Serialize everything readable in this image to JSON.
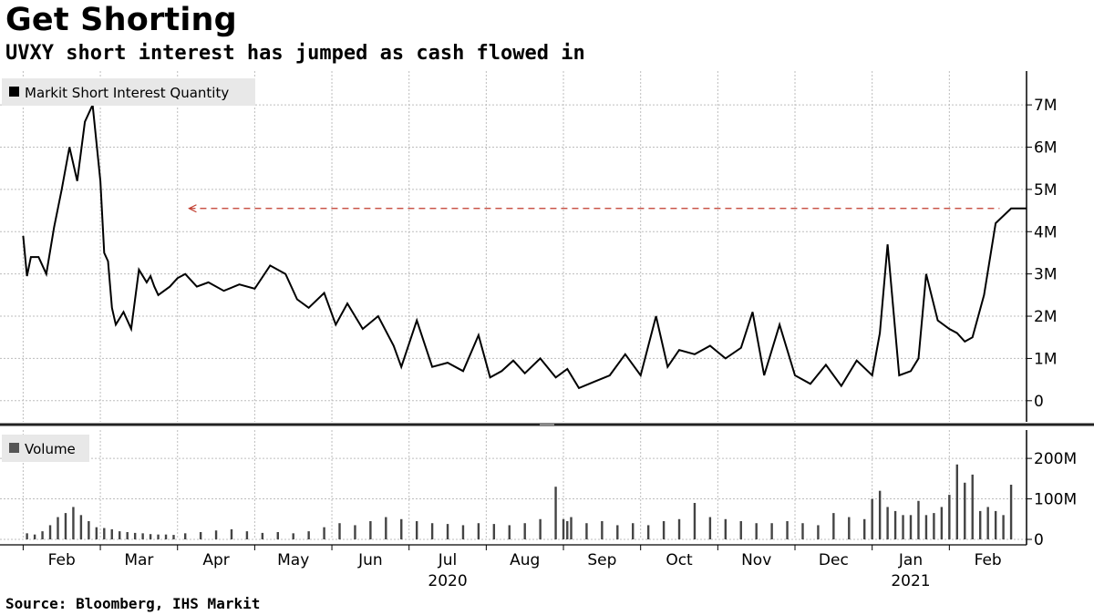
{
  "title": "Get Shorting",
  "subtitle": "UVXY short interest has jumped as cash flowed in",
  "source": "Source: Bloomberg, IHS Markit",
  "colors": {
    "line": "#000000",
    "reference": "#c0392b",
    "volume": "#444444",
    "grid": "#bdbdbd"
  },
  "chart_data": [
    {
      "type": "line",
      "title": "",
      "legend": {
        "position": "top-left",
        "label": "Markit Short Interest Quantity"
      },
      "ylabel": "",
      "ylim": [
        -0.5,
        7.8
      ],
      "yticks": [
        0,
        1,
        2,
        3,
        4,
        5,
        6,
        7
      ],
      "ytick_labels": [
        "0",
        "1M",
        "2M",
        "3M",
        "4M",
        "5M",
        "6M",
        "7M"
      ],
      "x_unit": "month index (Feb 2020 = 0)",
      "reference_line": {
        "value": 4.55,
        "style": "dashed",
        "direction": "arrow-left"
      },
      "series": [
        {
          "name": "Markit Short Interest Quantity",
          "x": [
            0.0,
            0.05,
            0.1,
            0.2,
            0.3,
            0.4,
            0.5,
            0.6,
            0.7,
            0.8,
            0.9,
            1.0,
            1.05,
            1.1,
            1.15,
            1.2,
            1.3,
            1.4,
            1.5,
            1.6,
            1.65,
            1.7,
            1.75,
            1.9,
            2.0,
            2.1,
            2.25,
            2.4,
            2.6,
            2.8,
            3.0,
            3.2,
            3.4,
            3.55,
            3.7,
            3.9,
            4.05,
            4.2,
            4.4,
            4.6,
            4.8,
            4.9,
            5.1,
            5.3,
            5.5,
            5.7,
            5.9,
            6.05,
            6.2,
            6.35,
            6.5,
            6.7,
            6.9,
            7.05,
            7.2,
            7.4,
            7.6,
            7.8,
            8.0,
            8.2,
            8.35,
            8.5,
            8.7,
            8.9,
            9.1,
            9.3,
            9.45,
            9.6,
            9.8,
            10.0,
            10.2,
            10.4,
            10.6,
            10.8,
            11.0,
            11.1,
            11.2,
            11.35,
            11.5,
            11.6,
            11.7,
            11.85,
            12.0,
            12.1,
            12.2,
            12.3,
            12.45,
            12.6,
            12.8,
            12.9,
            13.0
          ],
          "y": [
            3.9,
            2.95,
            3.4,
            3.4,
            3.0,
            4.1,
            5.0,
            6.0,
            5.2,
            6.6,
            7.0,
            5.2,
            3.5,
            3.3,
            2.2,
            1.8,
            2.1,
            1.7,
            3.1,
            2.8,
            2.95,
            2.7,
            2.5,
            2.7,
            2.9,
            3.0,
            2.7,
            2.8,
            2.6,
            2.75,
            2.65,
            3.2,
            3.0,
            2.4,
            2.2,
            2.55,
            1.8,
            2.3,
            1.7,
            2.0,
            1.3,
            0.8,
            1.9,
            0.8,
            0.9,
            0.7,
            1.55,
            0.55,
            0.7,
            0.95,
            0.65,
            1.0,
            0.55,
            0.75,
            0.3,
            0.45,
            0.6,
            1.1,
            0.6,
            2.0,
            0.8,
            1.2,
            1.1,
            1.3,
            1.0,
            1.25,
            2.1,
            0.6,
            1.8,
            0.6,
            0.4,
            0.85,
            0.35,
            0.95,
            0.6,
            1.6,
            3.7,
            0.6,
            0.7,
            1.0,
            3.0,
            1.9,
            1.7,
            1.6,
            1.4,
            1.5,
            2.5,
            4.2,
            4.55,
            4.55,
            4.55
          ]
        }
      ]
    },
    {
      "type": "bar",
      "title": "",
      "legend": {
        "position": "top-left",
        "label": "Volume"
      },
      "ylim": [
        0,
        270
      ],
      "yticks": [
        0,
        100,
        200
      ],
      "ytick_labels": [
        "0",
        "100M",
        "200M"
      ],
      "x_unit": "month index (Feb 2020 = 0)",
      "x_labels": [
        "Feb",
        "Mar",
        "Apr",
        "May",
        "Jun",
        "Jul",
        "Aug",
        "Sep",
        "Oct",
        "Nov",
        "Dec",
        "Jan",
        "Feb"
      ],
      "year_labels": [
        {
          "at": 5,
          "label": "2020"
        },
        {
          "at": 11,
          "label": "2021"
        }
      ],
      "series": [
        {
          "name": "Volume",
          "x": [
            0.05,
            0.15,
            0.25,
            0.35,
            0.45,
            0.55,
            0.65,
            0.75,
            0.85,
            0.95,
            1.05,
            1.15,
            1.25,
            1.35,
            1.45,
            1.55,
            1.65,
            1.75,
            1.85,
            1.95,
            2.1,
            2.3,
            2.5,
            2.7,
            2.9,
            3.1,
            3.3,
            3.5,
            3.7,
            3.9,
            4.1,
            4.3,
            4.5,
            4.7,
            4.9,
            5.1,
            5.3,
            5.5,
            5.7,
            5.9,
            6.1,
            6.3,
            6.5,
            6.7,
            6.9,
            7.0,
            7.05,
            7.1,
            7.3,
            7.5,
            7.7,
            7.9,
            8.1,
            8.3,
            8.5,
            8.7,
            8.9,
            9.1,
            9.3,
            9.5,
            9.7,
            9.9,
            10.1,
            10.3,
            10.5,
            10.7,
            10.9,
            11.0,
            11.1,
            11.2,
            11.3,
            11.4,
            11.5,
            11.6,
            11.7,
            11.8,
            11.9,
            12.0,
            12.1,
            12.2,
            12.3,
            12.4,
            12.5,
            12.6,
            12.7,
            12.8
          ],
          "y": [
            15,
            12,
            20,
            35,
            55,
            65,
            80,
            60,
            45,
            30,
            28,
            25,
            20,
            18,
            16,
            15,
            13,
            12,
            12,
            11,
            15,
            18,
            22,
            25,
            20,
            16,
            18,
            15,
            20,
            30,
            40,
            35,
            45,
            55,
            50,
            45,
            40,
            38,
            35,
            40,
            38,
            35,
            40,
            50,
            130,
            50,
            45,
            55,
            40,
            45,
            35,
            40,
            35,
            45,
            50,
            90,
            55,
            50,
            45,
            40,
            40,
            45,
            40,
            35,
            65,
            55,
            50,
            100,
            120,
            80,
            70,
            60,
            60,
            95,
            60,
            65,
            80,
            110,
            185,
            140,
            160,
            70,
            80,
            70,
            60,
            135
          ]
        }
      ]
    }
  ]
}
